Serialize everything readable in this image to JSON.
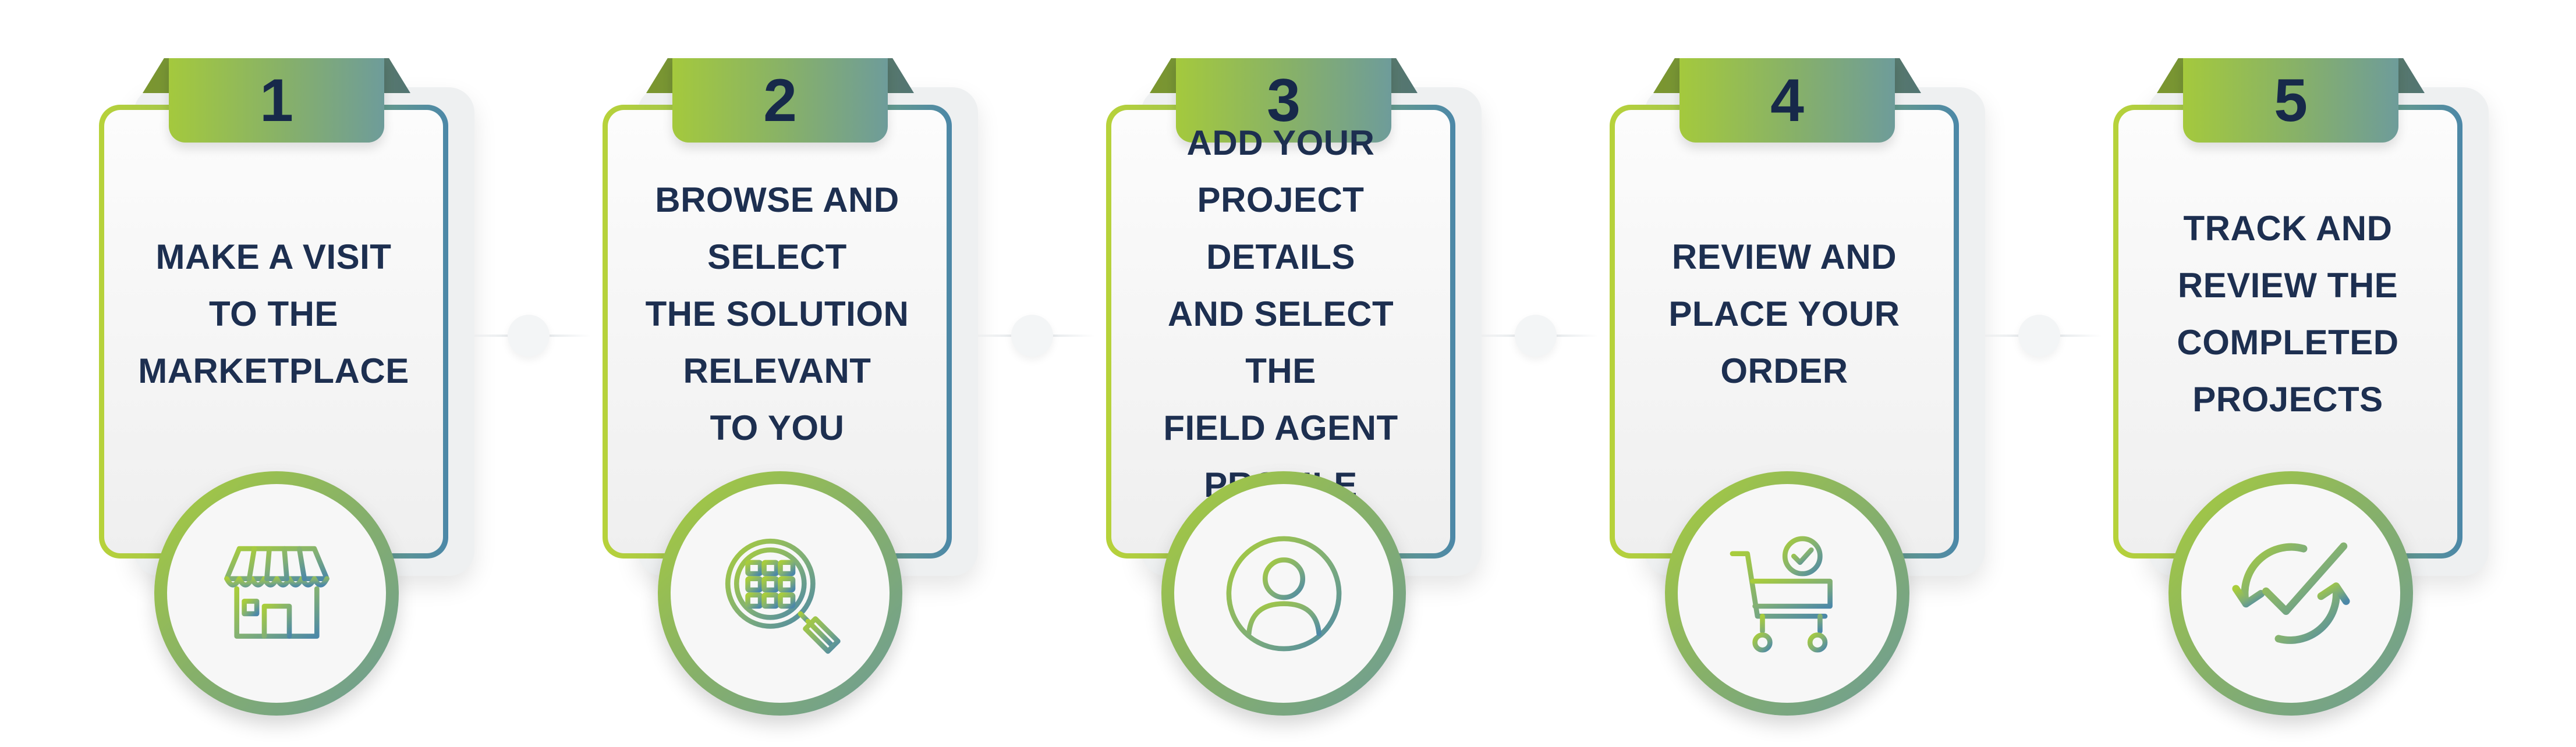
{
  "steps": [
    {
      "number": "1",
      "label": "MAKE A VISIT\nTO THE\nMARKETPLACE",
      "icon": "storefront-icon"
    },
    {
      "number": "2",
      "label": "BROWSE AND\nSELECT\nTHE SOLUTION\nRELEVANT\nTO YOU",
      "icon": "search-grid-icon"
    },
    {
      "number": "3",
      "label": "ADD YOUR\nPROJECT DETAILS\nAND SELECT THE\nFIELD AGENT\nPROFILE",
      "icon": "user-profile-icon"
    },
    {
      "number": "4",
      "label": "REVIEW AND\nPLACE YOUR\nORDER",
      "icon": "cart-check-icon"
    },
    {
      "number": "5",
      "label": "TRACK AND\nREVIEW THE\nCOMPLETED\nPROJECTS",
      "icon": "refresh-check-icon"
    }
  ],
  "colors": {
    "green": "#a4c93d",
    "teal": "#6e9c9a",
    "blue": "#4c88a8",
    "navy": "#1d2f50"
  }
}
